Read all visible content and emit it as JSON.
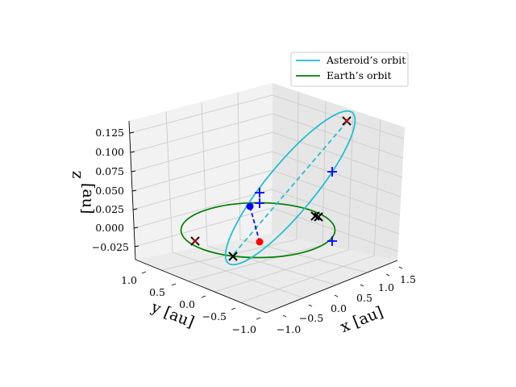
{
  "chart_data": {
    "type": "line3d",
    "series": [
      {
        "name": "Asteroid’s orbit",
        "color": "#17becf"
      },
      {
        "name": "Earth’s orbit",
        "color": "#008000"
      }
    ],
    "axes": {
      "x": {
        "label": "x [au]",
        "ticks": [
          "−1.0",
          "−0.5",
          "0.0",
          "0.5",
          "1.0",
          "1.5"
        ],
        "range": [
          -1.0,
          1.6
        ]
      },
      "y": {
        "label": "y [au]",
        "ticks": [
          "1.0",
          "0.5",
          "0.0",
          "−0.5",
          "−1.0"
        ],
        "range": [
          -1.0,
          1.0
        ]
      },
      "z": {
        "label": "z",
        "unit_label": "[au]",
        "ticks": [
          "0.125",
          "0.100",
          "0.075",
          "0.050",
          "0.025",
          "0.000",
          "−0.025"
        ],
        "range": [
          -0.03,
          0.13
        ]
      }
    },
    "markers": {
      "sun": {
        "color": "#ff0000",
        "symbol": "dot"
      },
      "asteroid": {
        "color": "#0000ff",
        "symbol": "dot"
      },
      "asteroid_positions": {
        "color": "#0000ff",
        "symbol": "+"
      },
      "earth_positions": {
        "color": "#000000",
        "symbol": "x"
      }
    },
    "legend_position": "top-right",
    "grid": true
  }
}
